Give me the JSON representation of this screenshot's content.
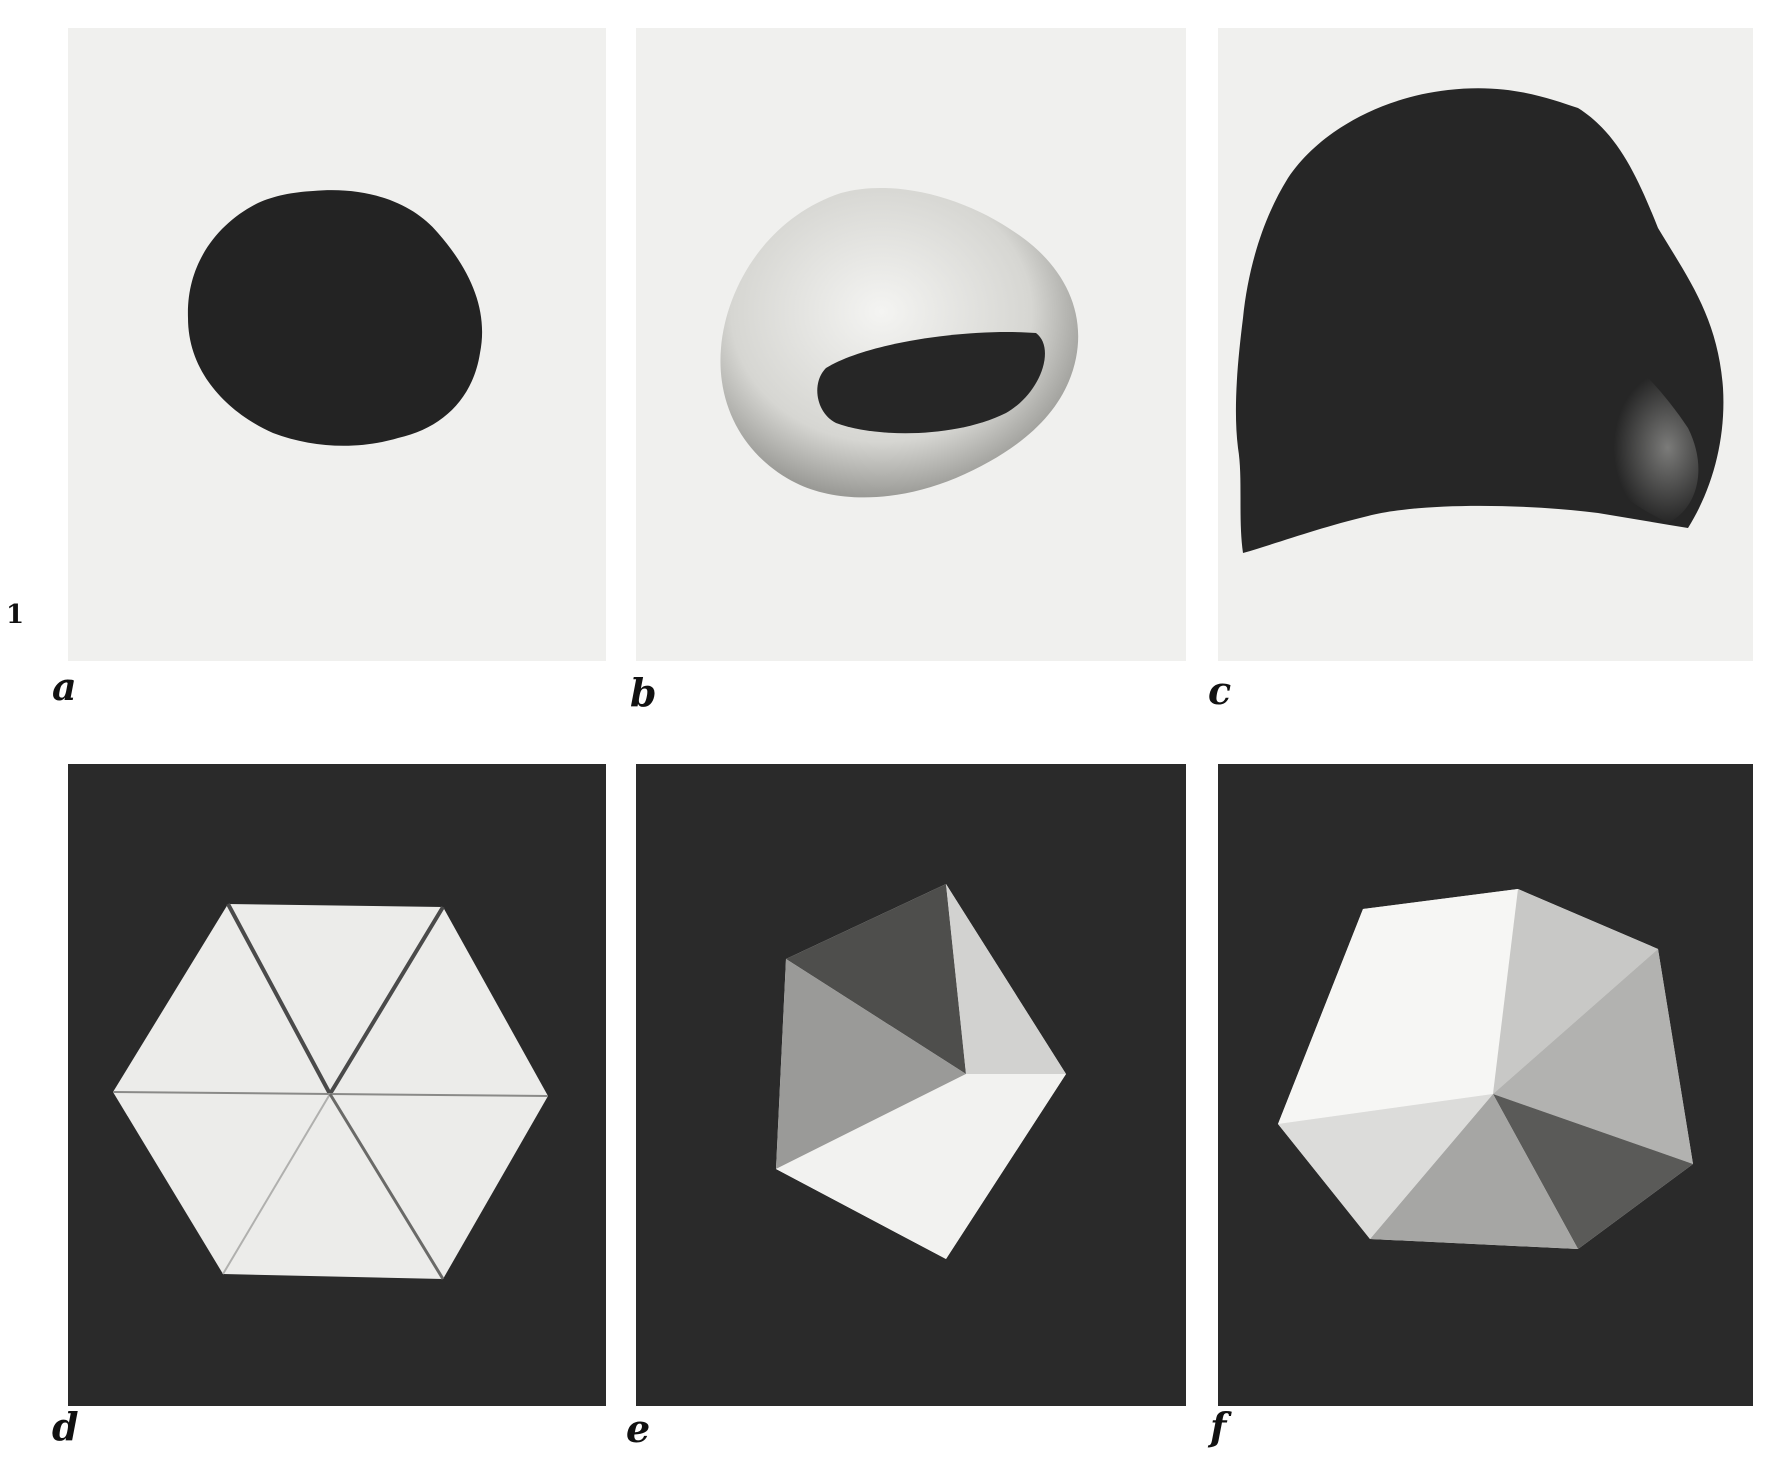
{
  "figure": {
    "number": "1",
    "panels": [
      {
        "id": "a",
        "label": "a",
        "subject": "dark-disc-icon"
      },
      {
        "id": "b",
        "label": "b",
        "subject": "hollow-bowl-icon"
      },
      {
        "id": "c",
        "label": "c",
        "subject": "crumpled-dome-icon"
      },
      {
        "id": "d",
        "label": "d",
        "subject": "flat-hexagon-paper-icon"
      },
      {
        "id": "e",
        "label": "e",
        "subject": "pentagonal-cone-paper-icon"
      },
      {
        "id": "f",
        "label": "f",
        "subject": "heptagonal-saddle-paper-icon"
      }
    ]
  },
  "colors": {
    "light_background": "#f0f0ee",
    "dark_background": "#2a2a2a",
    "dark_object": "#262626",
    "paper": "#ececea"
  }
}
